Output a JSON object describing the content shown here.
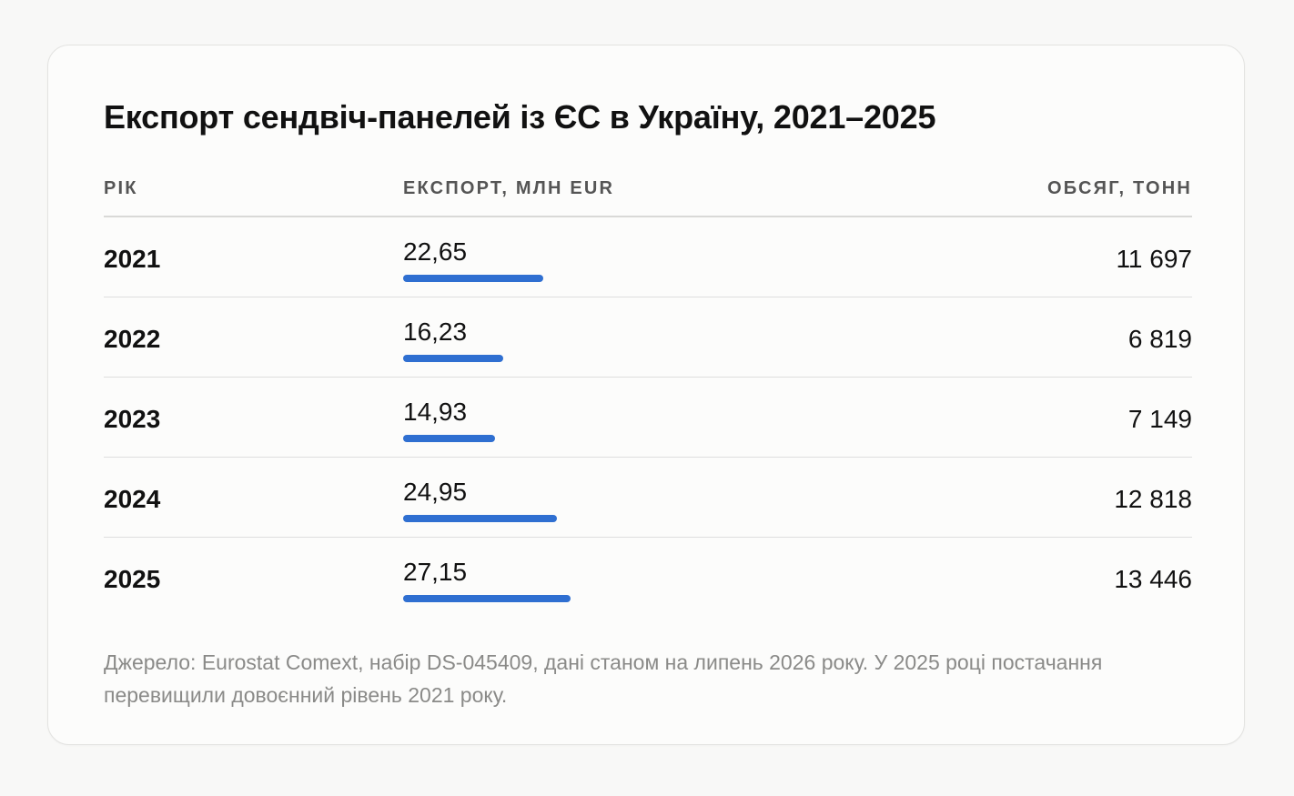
{
  "card": {
    "title": "Експорт сендвіч-панелей із ЄС в Україну, 2021–2025",
    "note": "Джерело: Eurostat Comext, набір DS-045409, дані станом на липень 2026 року. У 2025 році постачання перевищили довоєнний рівень 2021 року."
  },
  "table": {
    "headers": {
      "year": "РІК",
      "export": "ЕКСПОРТ, МЛН EUR",
      "volume": "ОБСЯГ, ТОНН"
    },
    "rows": [
      {
        "year": "2021",
        "export": "22,65",
        "volume": "11 697"
      },
      {
        "year": "2022",
        "export": "16,23",
        "volume": "6 819"
      },
      {
        "year": "2023",
        "export": "14,93",
        "volume": "7 149"
      },
      {
        "year": "2024",
        "export": "24,95",
        "volume": "12 818"
      },
      {
        "year": "2025",
        "export": "27,15",
        "volume": "13 446"
      }
    ]
  },
  "chart_data": {
    "type": "bar",
    "title": "Експорт сендвіч-панелей із ЄС в Україну, 2021–2025",
    "categories": [
      "2021",
      "2022",
      "2023",
      "2024",
      "2025"
    ],
    "series": [
      {
        "name": "ЕКСПОРТ, МЛН EUR",
        "values": [
          22.65,
          16.23,
          14.93,
          24.95,
          27.15
        ]
      }
    ],
    "secondary_values": {
      "name": "ОБСЯГ, ТОНН",
      "values": [
        11697,
        6819,
        7149,
        12818,
        13446
      ]
    },
    "bar_color": "#2f6fd1",
    "orientation": "horizontal",
    "grid": false
  }
}
